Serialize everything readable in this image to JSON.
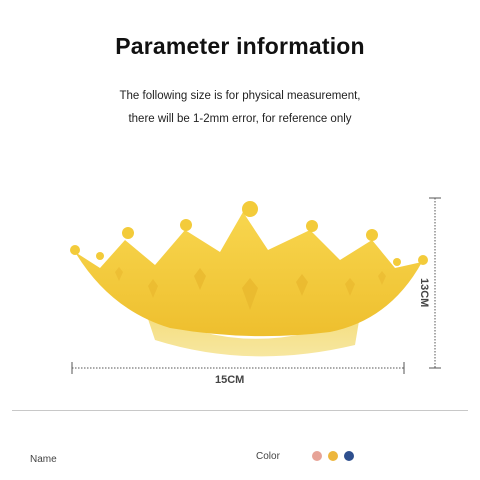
{
  "header": {
    "title": "Parameter information",
    "subtitle_line1": "The following size is for physical measurement,",
    "subtitle_line2": "there will be 1-2mm error, for reference only"
  },
  "product": {
    "image_name": "crown-shaped shower cap",
    "color": "#F3CB3A"
  },
  "dimensions": {
    "width_label": "15CM",
    "height_label": "13CM"
  },
  "footer": {
    "name_label": "Name",
    "color_label": "Color",
    "color_options": [
      {
        "name": "pink",
        "hex": "#E7A397"
      },
      {
        "name": "yellow",
        "hex": "#EDB63C"
      },
      {
        "name": "blue",
        "hex": "#2E4F8E"
      }
    ]
  }
}
